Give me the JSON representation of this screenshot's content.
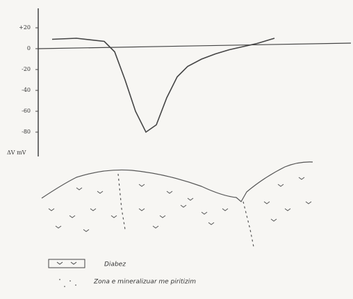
{
  "chart_data": {
    "type": "line",
    "y_label": "ΔV mV",
    "x": [
      20,
      55,
      95,
      110,
      125,
      140,
      155,
      170,
      185,
      200,
      215,
      235,
      255,
      275,
      295,
      315,
      340
    ],
    "xlim": [
      0,
      450
    ],
    "series": [
      {
        "name": null,
        "color": "#444",
        "values": [
          9,
          10,
          7,
          -3,
          -30,
          -60,
          -80,
          -73,
          -47,
          -27,
          -17,
          -10,
          -5,
          -1,
          2,
          5,
          10
        ]
      }
    ],
    "ylim": [
      20,
      -80
    ],
    "yticks": [
      {
        "value": 20,
        "label": "+20"
      },
      0,
      -20,
      -40,
      -60,
      -80
    ],
    "legend": [
      {
        "label": "Diabez"
      },
      {
        "label": "Zona e mineralizuar me piritizim"
      }
    ]
  }
}
